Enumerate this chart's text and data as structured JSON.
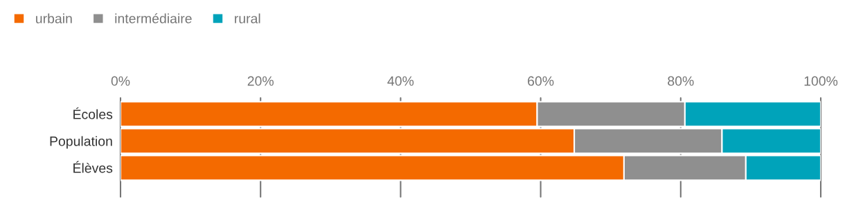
{
  "chart_data": {
    "type": "bar",
    "orientation": "horizontal",
    "stacked": true,
    "categories": [
      "Écoles",
      "Population",
      "Élèves"
    ],
    "series": [
      {
        "name": "urbain",
        "color": "#f46a00",
        "values": [
          59.5,
          64.8,
          71.9
        ]
      },
      {
        "name": "intermédiaire",
        "color": "#8f8f8f",
        "values": [
          21.1,
          21.1,
          17.4
        ]
      },
      {
        "name": "rural",
        "color": "#00a3ba",
        "values": [
          19.4,
          14.1,
          10.7
        ]
      }
    ],
    "xlim": [
      0,
      100
    ],
    "xticks": [
      {
        "value": 0,
        "label": "0%"
      },
      {
        "value": 20,
        "label": "20%"
      },
      {
        "value": 40,
        "label": "40%"
      },
      {
        "value": 60,
        "label": "60%"
      },
      {
        "value": 80,
        "label": "80%"
      },
      {
        "value": 100,
        "label": "100%"
      }
    ],
    "grid": "x",
    "legend": "top left"
  }
}
